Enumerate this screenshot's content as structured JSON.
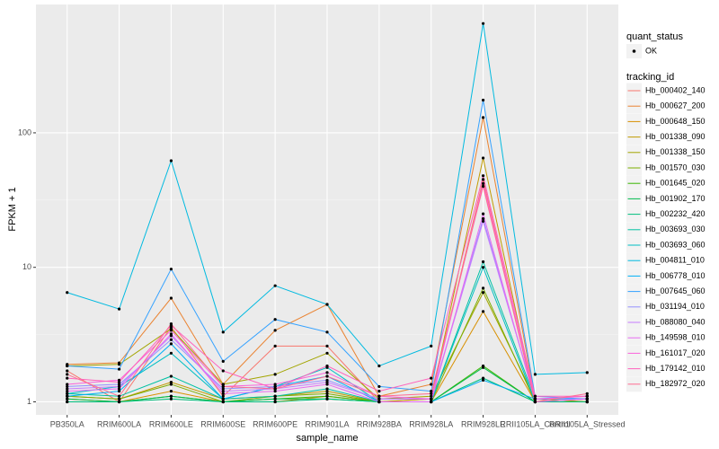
{
  "chart_data": {
    "type": "line",
    "x_label": "sample_name",
    "y_label": "FPKM + 1",
    "log_scale": true,
    "grid": true,
    "legend": "right",
    "legend_titles": {
      "points": "quant_status",
      "lines": "tracking_id"
    },
    "point_legend": "OK",
    "categories": [
      "PB350LA",
      "RRIM600LA",
      "RRIM600LE",
      "RRIM600SE",
      "RRIM600PE",
      "RRIM901LA",
      "RRIM928BA",
      "RRIM928LA",
      "RRIM928LE",
      "RRII105LA_Control",
      "RRII105LA_Stressed"
    ],
    "ylim": [
      0.8,
      900
    ],
    "yticks": [
      1,
      10,
      100
    ],
    "series": [
      {
        "name": "Hb_000402_140",
        "color": "#F8766D",
        "values": [
          1.7,
          1.0,
          3.6,
          1.1,
          2.6,
          2.6,
          1.0,
          1.05,
          45,
          1.0,
          1.05
        ]
      },
      {
        "name": "Hb_000627_200",
        "color": "#EA8331",
        "values": [
          1.9,
          1.95,
          5.9,
          1.35,
          3.4,
          5.3,
          1.1,
          1.35,
          130,
          1.05,
          1.0
        ]
      },
      {
        "name": "Hb_000648_150",
        "color": "#D89000",
        "values": [
          1.05,
          1.0,
          1.2,
          1.0,
          1.0,
          1.1,
          1.0,
          1.0,
          4.7,
          1.0,
          1.0
        ]
      },
      {
        "name": "Hb_001338_090",
        "color": "#C09B00",
        "values": [
          1.1,
          1.05,
          1.4,
          1.05,
          1.1,
          1.2,
          1.0,
          1.05,
          65,
          1.0,
          1.0
        ]
      },
      {
        "name": "Hb_001338_150",
        "color": "#A3A500",
        "values": [
          1.85,
          1.9,
          3.5,
          1.35,
          1.6,
          2.3,
          1.05,
          1.1,
          6.5,
          1.05,
          1.0
        ]
      },
      {
        "name": "Hb_001570_030",
        "color": "#7CAE00",
        "values": [
          1.1,
          1.05,
          1.35,
          1.0,
          1.1,
          1.15,
          1.0,
          1.0,
          7.0,
          1.0,
          1.0
        ]
      },
      {
        "name": "Hb_001645_020",
        "color": "#39B600",
        "values": [
          1.0,
          1.0,
          1.1,
          1.0,
          1.05,
          1.1,
          1.0,
          1.0,
          1.85,
          1.0,
          1.0
        ]
      },
      {
        "name": "Hb_001902_170",
        "color": "#00BB4E",
        "values": [
          1.05,
          1.0,
          1.1,
          1.0,
          1.05,
          1.05,
          1.0,
          1.0,
          1.8,
          1.0,
          1.0
        ]
      },
      {
        "name": "Hb_002232_420",
        "color": "#00BF7D",
        "values": [
          1.0,
          1.0,
          1.05,
          1.0,
          1.0,
          1.05,
          1.0,
          1.0,
          1.5,
          1.0,
          1.0
        ]
      },
      {
        "name": "Hb_003693_030",
        "color": "#00C1A3",
        "values": [
          1.15,
          1.1,
          1.55,
          1.05,
          1.1,
          1.25,
          1.0,
          1.0,
          11,
          1.05,
          1.05
        ]
      },
      {
        "name": "Hb_003693_060",
        "color": "#00BFC4",
        "values": [
          1.15,
          1.3,
          2.3,
          1.05,
          1.3,
          1.8,
          1.0,
          1.0,
          10,
          1.0,
          1.05
        ]
      },
      {
        "name": "Hb_004811_010",
        "color": "#00BAE0",
        "values": [
          6.5,
          4.9,
          62,
          3.3,
          7.3,
          5.3,
          1.85,
          2.6,
          650,
          1.6,
          1.65
        ]
      },
      {
        "name": "Hb_006778_010",
        "color": "#00B0F6",
        "values": [
          1.1,
          1.2,
          2.7,
          1.05,
          1.3,
          1.55,
          1.0,
          1.0,
          1.45,
          1.05,
          1.05
        ]
      },
      {
        "name": "Hb_007645_060",
        "color": "#35A2FF",
        "values": [
          1.85,
          1.75,
          9.7,
          2.0,
          4.1,
          3.3,
          1.3,
          1.2,
          175,
          1.1,
          1.05
        ]
      },
      {
        "name": "Hb_031194_010",
        "color": "#9590FF",
        "values": [
          1.3,
          1.35,
          2.9,
          1.25,
          1.3,
          1.45,
          1.05,
          1.05,
          23,
          1.05,
          1.05
        ]
      },
      {
        "name": "Hb_088080_040",
        "color": "#C77CFF",
        "values": [
          1.25,
          1.3,
          3.1,
          1.2,
          1.25,
          1.4,
          1.05,
          1.05,
          22,
          1.05,
          1.1
        ]
      },
      {
        "name": "Hb_149598_010",
        "color": "#E76BF3",
        "values": [
          1.2,
          1.25,
          3.2,
          1.15,
          1.2,
          1.35,
          1.0,
          1.0,
          25,
          1.0,
          1.05
        ]
      },
      {
        "name": "Hb_161017_020",
        "color": "#FA62DB",
        "values": [
          1.35,
          1.45,
          3.4,
          1.3,
          1.35,
          1.65,
          1.1,
          1.05,
          42,
          1.05,
          1.1
        ]
      },
      {
        "name": "Hb_179142_010",
        "color": "#FF62BC",
        "values": [
          1.5,
          1.4,
          3.7,
          1.7,
          1.25,
          1.85,
          1.2,
          1.5,
          48,
          1.1,
          1.1
        ]
      },
      {
        "name": "Hb_182972_020",
        "color": "#FF6C91",
        "values": [
          1.6,
          1.1,
          3.8,
          1.3,
          1.25,
          1.55,
          1.1,
          1.15,
          40,
          1.0,
          1.15
        ]
      }
    ]
  }
}
